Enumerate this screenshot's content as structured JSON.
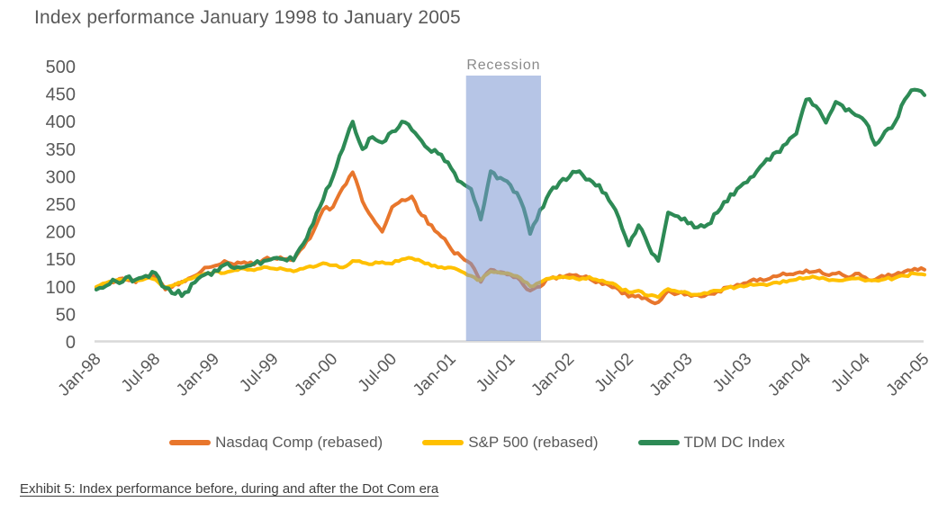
{
  "title": "Index performance January 1998 to January 2005",
  "caption": "Exhibit 5: Index performance before, during and after the Dot Com era",
  "colors": {
    "nasdaq": "#E8762C",
    "sp500": "#FFC000",
    "tdm": "#2D8A55",
    "recession_band": "rgba(122,149,209,0.55)",
    "axis_line": "#D9D9D9",
    "axis_text": "#595959",
    "recession_text": "#8A8A8A"
  },
  "legend": [
    {
      "id": "nasdaq",
      "label": "Nasdaq Comp (rebased)",
      "color": "#E8762C"
    },
    {
      "id": "sp500",
      "label": "S&P 500 (rebased)",
      "color": "#FFC000"
    },
    {
      "id": "tdm",
      "label": "TDM DC Index",
      "color": "#2D8A55"
    }
  ],
  "chart_data": {
    "type": "line",
    "title": "Index performance January 1998 to January 2005",
    "x_start": "Jan-98",
    "x_interval": "monthly",
    "x_tick_labels": [
      "Jan-98",
      "Jul-98",
      "Jan-99",
      "Jul-99",
      "Jan-00",
      "Jul-00",
      "Jan-01",
      "Jul-01",
      "Jan-02",
      "Jul-02",
      "Jan-03",
      "Jul-03",
      "Jan-04",
      "Jul-04",
      "Jan-05"
    ],
    "x_tick_step_months": 6,
    "y_ticks": [
      0,
      50,
      100,
      150,
      200,
      250,
      300,
      350,
      400,
      450,
      500
    ],
    "ylim": [
      0,
      500
    ],
    "grid": false,
    "legend_position": "bottom",
    "annotations": {
      "recession": {
        "label": "Recession",
        "start": "Mar-01",
        "end": "Nov-01",
        "start_index": 37.5,
        "end_index": 45.1
      }
    },
    "series": [
      {
        "id": "nasdaq",
        "name": "Nasdaq Comp (rebased)",
        "color": "#E8762C",
        "values": [
          98,
          105,
          110,
          113,
          108,
          120,
          118,
          95,
          105,
          110,
          120,
          135,
          138,
          147,
          140,
          145,
          140,
          150,
          152,
          150,
          148,
          172,
          200,
          240,
          245,
          280,
          308,
          255,
          225,
          200,
          245,
          258,
          264,
          230,
          212,
          191,
          168,
          155,
          142,
          109,
          131,
          127,
          122,
          112,
          93,
          100,
          115,
          120,
          122,
          118,
          115,
          110,
          103,
          95,
          82,
          84,
          76,
          72,
          93,
          88,
          87,
          85,
          87,
          92,
          99,
          104,
          107,
          111,
          113,
          119,
          122,
          125,
          130,
          128,
          122,
          124,
          119,
          124,
          117,
          113,
          118,
          122,
          128,
          133,
          131
        ]
      },
      {
        "id": "sp500",
        "name": "S&P 500 (rebased)",
        "color": "#FFC000",
        "values": [
          100,
          107,
          112,
          113,
          111,
          115,
          113,
          99,
          104,
          112,
          118,
          124,
          128,
          125,
          130,
          133,
          130,
          136,
          133,
          132,
          128,
          133,
          136,
          143,
          139,
          135,
          147,
          144,
          141,
          145,
          142,
          150,
          152,
          146,
          138,
          136,
          135,
          128,
          120,
          112,
          128,
          125,
          123,
          116,
          101,
          108,
          115,
          117,
          116,
          113,
          118,
          111,
          107,
          99,
          90,
          93,
          84,
          81,
          96,
          91,
          89,
          86,
          88,
          93,
          98,
          100,
          102,
          104,
          103,
          108,
          109,
          113,
          116,
          117,
          114,
          112,
          113,
          115,
          111,
          112,
          114,
          116,
          120,
          124,
          122
        ]
      },
      {
        "id": "tdm",
        "name": "TDM DC Index",
        "color": "#2D8A55",
        "values": [
          95,
          102,
          110,
          117,
          113,
          120,
          125,
          98,
          87,
          90,
          108,
          122,
          130,
          140,
          134,
          136,
          142,
          147,
          152,
          150,
          148,
          178,
          215,
          258,
          300,
          350,
          400,
          350,
          372,
          362,
          382,
          400,
          385,
          365,
          345,
          340,
          315,
          290,
          278,
          222,
          310,
          298,
          285,
          258,
          196,
          240,
          272,
          290,
          300,
          310,
          295,
          285,
          257,
          225,
          175,
          212,
          175,
          147,
          235,
          228,
          215,
          208,
          213,
          235,
          255,
          278,
          290,
          310,
          332,
          345,
          360,
          378,
          440,
          428,
          398,
          436,
          420,
          412,
          400,
          358,
          382,
          398,
          440,
          458,
          448
        ]
      }
    ]
  }
}
